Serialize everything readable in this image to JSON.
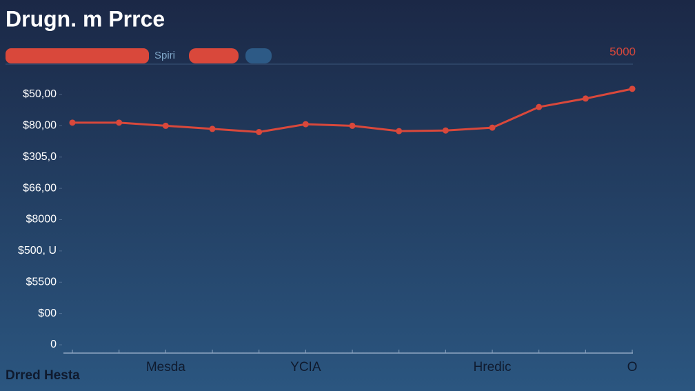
{
  "chart_data": {
    "type": "line",
    "title": "Drugn. m Prrce",
    "annotation": "5000",
    "footer": "Drred Hesta",
    "categories": [
      null,
      null,
      "Mesda",
      null,
      null,
      "YCIA",
      null,
      null,
      null,
      "Hredic",
      null,
      null,
      "O"
    ],
    "series": [
      {
        "name": "Spiri",
        "color": "#d9483b",
        "values": [
          7.1,
          7.1,
          7.0,
          6.9,
          6.8,
          7.05,
          7.0,
          6.83,
          6.85,
          6.94,
          7.6,
          7.87,
          8.18
        ]
      }
    ],
    "ylim": [
      0,
      8.3
    ],
    "yticks": [
      {
        "value": 0,
        "label": "0"
      },
      {
        "value": 1,
        "label": "$00"
      },
      {
        "value": 2,
        "label": "$5500"
      },
      {
        "value": 3,
        "label": "$500, U"
      },
      {
        "value": 4,
        "label": "$8000"
      },
      {
        "value": 5,
        "label": "$66,00"
      },
      {
        "value": 6,
        "label": "$305,0"
      },
      {
        "value": 7,
        "label": "$80,00"
      },
      {
        "value": 8,
        "label": "$50,00"
      }
    ],
    "grid": false
  }
}
